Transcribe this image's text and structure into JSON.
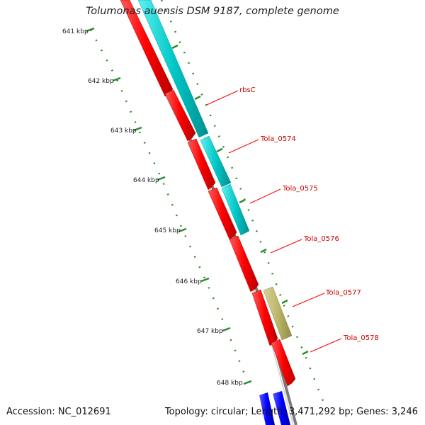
{
  "title": "Tolumonas auensis DSM 9187, complete genome",
  "accession": "Accession: NC_012691",
  "summary": "Topology: circular; Length: 3,471,292 bp; Genes: 3,246",
  "colors": {
    "backbone": "#888888",
    "ruler_tick": "#2e8b2e",
    "gene_red": "#ff0000",
    "feature_cyan": "#00c8c8",
    "feature_khaki": "#bdb76b",
    "gene_blue": "#0000ff",
    "label_line": "#ff0000",
    "label_text": "#cc0000"
  },
  "ruler": {
    "ticks": [
      "641 kbp",
      "642 kbp",
      "643 kbp",
      "644 kbp",
      "645 kbp",
      "646 kbp",
      "647 kbp",
      "648 kbp"
    ]
  },
  "genes": [
    {
      "label": "rbsC",
      "color": "red"
    },
    {
      "label": "Tola_0574",
      "color": "red"
    },
    {
      "label": "Tola_0575",
      "color": "red"
    },
    {
      "label": "Tola_0576",
      "color": "red"
    },
    {
      "label": "Tola_0577",
      "color": "red"
    },
    {
      "label": "Tola_0578",
      "color": "red"
    }
  ]
}
